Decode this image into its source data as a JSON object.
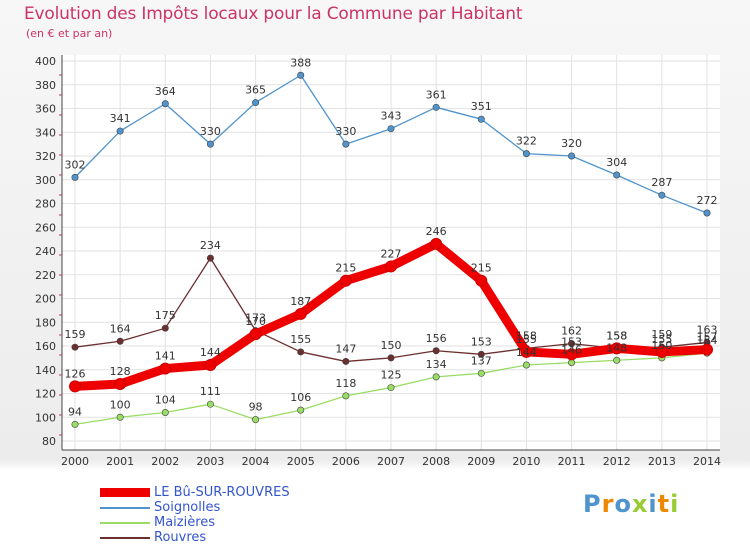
{
  "title": "Evolution des Impôts locaux pour la Commune par Habitant",
  "subtitle": "(en € et par an)",
  "brand": "Proxiti",
  "chart_data": {
    "type": "line",
    "x": [
      2000,
      2001,
      2002,
      2003,
      2004,
      2005,
      2006,
      2007,
      2008,
      2009,
      2010,
      2011,
      2012,
      2013,
      2014
    ],
    "ylim": [
      80,
      400
    ],
    "yticks": [
      80,
      100,
      120,
      140,
      160,
      180,
      200,
      220,
      240,
      260,
      280,
      300,
      320,
      340,
      360,
      380,
      400
    ],
    "grid": true,
    "series": [
      {
        "name": "LE Bû-SUR-ROUVRES",
        "color": "#ee0000",
        "values": [
          126,
          128,
          141,
          144,
          170,
          187,
          215,
          227,
          246,
          215,
          155,
          153,
          158,
          155,
          157
        ]
      },
      {
        "name": "Soignolles",
        "color": "#4f94cd",
        "values": [
          302,
          341,
          364,
          330,
          365,
          388,
          330,
          343,
          361,
          351,
          322,
          320,
          304,
          287,
          272
        ]
      },
      {
        "name": "Maizières",
        "color": "#99dd66",
        "values": [
          94,
          100,
          104,
          111,
          98,
          106,
          118,
          125,
          134,
          137,
          144,
          146,
          148,
          150,
          154
        ]
      },
      {
        "name": "Rouvres",
        "color": "#6b2f2f",
        "values": [
          159,
          164,
          175,
          234,
          173,
          155,
          147,
          150,
          156,
          153,
          158,
          162,
          158,
          159,
          163
        ]
      }
    ],
    "legend_position": "bottom"
  }
}
